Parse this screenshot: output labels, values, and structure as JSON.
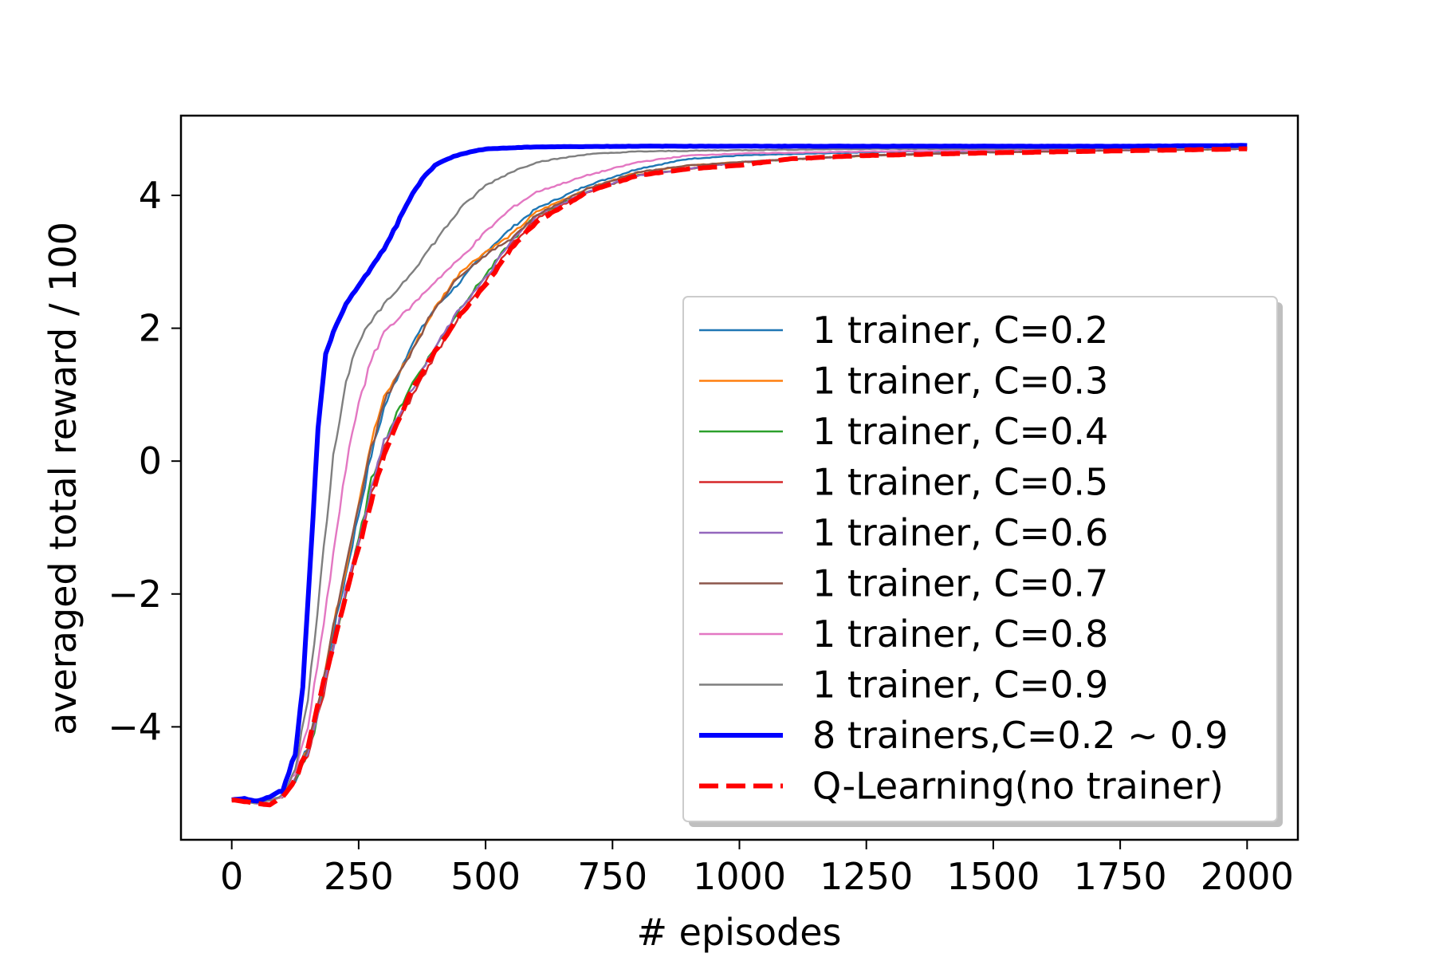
{
  "chart_data": {
    "type": "line",
    "title": "",
    "xlabel": "# episodes",
    "ylabel": "averaged total reward / 100",
    "xlim": [
      -100,
      2100
    ],
    "ylim": [
      -5.7,
      5.2
    ],
    "x_ticks": [
      0,
      250,
      500,
      750,
      1000,
      1250,
      1500,
      1750,
      2000
    ],
    "x_tick_labels": [
      "0",
      "250",
      "500",
      "750",
      "1000",
      "1250",
      "1500",
      "1750",
      "2000"
    ],
    "y_ticks": [
      -4,
      -2,
      0,
      2,
      4
    ],
    "y_tick_labels": [
      "−4",
      "−2",
      "0",
      "2",
      "4"
    ],
    "grid": false,
    "legend_position": "lower-right",
    "series": [
      {
        "name": "1 trainer, C=0.2",
        "color": "#1f77b4",
        "style": "solid",
        "width": "thin",
        "points": [
          [
            0,
            -5.1
          ],
          [
            50,
            -5.15
          ],
          [
            100,
            -5.05
          ],
          [
            125,
            -4.8
          ],
          [
            150,
            -4.3
          ],
          [
            175,
            -3.5
          ],
          [
            200,
            -2.6
          ],
          [
            225,
            -1.7
          ],
          [
            250,
            -0.8
          ],
          [
            275,
            0.1
          ],
          [
            300,
            0.8
          ],
          [
            350,
            1.7
          ],
          [
            400,
            2.3
          ],
          [
            450,
            2.7
          ],
          [
            500,
            3.15
          ],
          [
            550,
            3.5
          ],
          [
            600,
            3.8
          ],
          [
            700,
            4.15
          ],
          [
            800,
            4.4
          ],
          [
            900,
            4.55
          ],
          [
            1000,
            4.6
          ],
          [
            1250,
            4.65
          ],
          [
            1500,
            4.68
          ],
          [
            1750,
            4.7
          ],
          [
            2000,
            4.72
          ]
        ]
      },
      {
        "name": "1 trainer, C=0.3",
        "color": "#ff7f0e",
        "style": "solid",
        "width": "thin",
        "points": [
          [
            0,
            -5.1
          ],
          [
            50,
            -5.15
          ],
          [
            100,
            -5.05
          ],
          [
            125,
            -4.8
          ],
          [
            150,
            -4.3
          ],
          [
            175,
            -3.5
          ],
          [
            200,
            -2.5
          ],
          [
            225,
            -1.6
          ],
          [
            250,
            -0.6
          ],
          [
            275,
            0.3
          ],
          [
            300,
            0.95
          ],
          [
            350,
            1.6
          ],
          [
            400,
            2.3
          ],
          [
            450,
            2.85
          ],
          [
            500,
            3.15
          ],
          [
            550,
            3.4
          ],
          [
            600,
            3.75
          ],
          [
            700,
            4.1
          ],
          [
            800,
            4.35
          ],
          [
            900,
            4.45
          ],
          [
            1000,
            4.5
          ],
          [
            1250,
            4.6
          ],
          [
            1500,
            4.65
          ],
          [
            1750,
            4.68
          ],
          [
            2000,
            4.7
          ]
        ]
      },
      {
        "name": "1 trainer, C=0.4",
        "color": "#2ca02c",
        "style": "solid",
        "width": "thin",
        "points": [
          [
            0,
            -5.1
          ],
          [
            50,
            -5.15
          ],
          [
            100,
            -5.05
          ],
          [
            125,
            -4.8
          ],
          [
            150,
            -4.4
          ],
          [
            175,
            -3.7
          ],
          [
            200,
            -2.8
          ],
          [
            225,
            -2.0
          ],
          [
            250,
            -1.2
          ],
          [
            275,
            -0.3
          ],
          [
            300,
            0.3
          ],
          [
            350,
            1.1
          ],
          [
            400,
            1.7
          ],
          [
            450,
            2.3
          ],
          [
            500,
            2.8
          ],
          [
            550,
            3.3
          ],
          [
            600,
            3.7
          ],
          [
            700,
            4.05
          ],
          [
            800,
            4.3
          ],
          [
            900,
            4.4
          ],
          [
            1000,
            4.5
          ],
          [
            1250,
            4.6
          ],
          [
            1500,
            4.65
          ],
          [
            1750,
            4.68
          ],
          [
            2000,
            4.7
          ]
        ]
      },
      {
        "name": "1 trainer, C=0.5",
        "color": "#d62728",
        "style": "solid",
        "width": "thin",
        "points": [
          [
            0,
            -5.1
          ],
          [
            50,
            -5.15
          ],
          [
            100,
            -5.05
          ],
          [
            125,
            -4.8
          ],
          [
            150,
            -4.4
          ],
          [
            175,
            -3.7
          ],
          [
            200,
            -2.8
          ],
          [
            225,
            -2.0
          ],
          [
            250,
            -1.3
          ],
          [
            275,
            -0.5
          ],
          [
            300,
            0.2
          ],
          [
            350,
            0.9
          ],
          [
            400,
            1.6
          ],
          [
            450,
            2.2
          ],
          [
            500,
            2.7
          ],
          [
            550,
            3.25
          ],
          [
            600,
            3.65
          ],
          [
            700,
            4.05
          ],
          [
            800,
            4.3
          ],
          [
            900,
            4.4
          ],
          [
            1000,
            4.5
          ],
          [
            1250,
            4.6
          ],
          [
            1500,
            4.65
          ],
          [
            1750,
            4.68
          ],
          [
            2000,
            4.7
          ]
        ]
      },
      {
        "name": "1 trainer, C=0.6",
        "color": "#9467bd",
        "style": "solid",
        "width": "thin",
        "points": [
          [
            0,
            -5.1
          ],
          [
            50,
            -5.15
          ],
          [
            100,
            -5.05
          ],
          [
            125,
            -4.8
          ],
          [
            150,
            -4.4
          ],
          [
            175,
            -3.6
          ],
          [
            200,
            -2.8
          ],
          [
            225,
            -1.9
          ],
          [
            250,
            -1.2
          ],
          [
            275,
            -0.4
          ],
          [
            300,
            0.3
          ],
          [
            350,
            1.0
          ],
          [
            400,
            1.7
          ],
          [
            450,
            2.3
          ],
          [
            500,
            2.75
          ],
          [
            550,
            3.3
          ],
          [
            600,
            3.7
          ],
          [
            700,
            4.05
          ],
          [
            800,
            4.3
          ],
          [
            900,
            4.4
          ],
          [
            1000,
            4.5
          ],
          [
            1250,
            4.6
          ],
          [
            1500,
            4.65
          ],
          [
            1750,
            4.68
          ],
          [
            2000,
            4.7
          ]
        ]
      },
      {
        "name": "1 trainer, C=0.7",
        "color": "#8c564b",
        "style": "solid",
        "width": "thin",
        "points": [
          [
            0,
            -5.1
          ],
          [
            50,
            -5.15
          ],
          [
            100,
            -5.05
          ],
          [
            125,
            -4.8
          ],
          [
            150,
            -4.3
          ],
          [
            175,
            -3.5
          ],
          [
            200,
            -2.5
          ],
          [
            225,
            -1.6
          ],
          [
            250,
            -0.7
          ],
          [
            275,
            0.2
          ],
          [
            300,
            0.9
          ],
          [
            350,
            1.6
          ],
          [
            400,
            2.3
          ],
          [
            450,
            2.8
          ],
          [
            500,
            3.1
          ],
          [
            550,
            3.35
          ],
          [
            600,
            3.7
          ],
          [
            700,
            4.1
          ],
          [
            800,
            4.35
          ],
          [
            900,
            4.45
          ],
          [
            1000,
            4.5
          ],
          [
            1250,
            4.6
          ],
          [
            1500,
            4.65
          ],
          [
            1750,
            4.68
          ],
          [
            2000,
            4.7
          ]
        ]
      },
      {
        "name": "1 trainer, C=0.8",
        "color": "#e377c2",
        "style": "solid",
        "width": "thin",
        "points": [
          [
            0,
            -5.1
          ],
          [
            50,
            -5.15
          ],
          [
            100,
            -5.05
          ],
          [
            125,
            -4.7
          ],
          [
            150,
            -4.0
          ],
          [
            175,
            -2.8
          ],
          [
            200,
            -1.4
          ],
          [
            225,
            -0.1
          ],
          [
            250,
            0.9
          ],
          [
            275,
            1.5
          ],
          [
            300,
            1.95
          ],
          [
            350,
            2.3
          ],
          [
            400,
            2.7
          ],
          [
            450,
            3.05
          ],
          [
            500,
            3.45
          ],
          [
            550,
            3.8
          ],
          [
            600,
            4.05
          ],
          [
            700,
            4.3
          ],
          [
            800,
            4.5
          ],
          [
            900,
            4.6
          ],
          [
            1000,
            4.63
          ],
          [
            1250,
            4.66
          ],
          [
            1500,
            4.68
          ],
          [
            1750,
            4.7
          ],
          [
            2000,
            4.72
          ]
        ]
      },
      {
        "name": "1 trainer, C=0.9",
        "color": "#7f7f7f",
        "style": "solid",
        "width": "thin",
        "points": [
          [
            0,
            -5.1
          ],
          [
            50,
            -5.15
          ],
          [
            100,
            -5.05
          ],
          [
            125,
            -4.6
          ],
          [
            150,
            -3.6
          ],
          [
            175,
            -1.8
          ],
          [
            200,
            0.1
          ],
          [
            225,
            1.2
          ],
          [
            250,
            1.8
          ],
          [
            275,
            2.1
          ],
          [
            300,
            2.35
          ],
          [
            350,
            2.8
          ],
          [
            400,
            3.3
          ],
          [
            450,
            3.8
          ],
          [
            500,
            4.15
          ],
          [
            550,
            4.35
          ],
          [
            600,
            4.5
          ],
          [
            700,
            4.62
          ],
          [
            800,
            4.66
          ],
          [
            1000,
            4.68
          ],
          [
            1250,
            4.7
          ],
          [
            1500,
            4.7
          ],
          [
            1750,
            4.71
          ],
          [
            2000,
            4.72
          ]
        ]
      },
      {
        "name": "8 trainers,C=0.2 ~ 0.9",
        "color": "#0000ff",
        "style": "solid",
        "width": "thick",
        "points": [
          [
            0,
            -5.1
          ],
          [
            25,
            -5.08
          ],
          [
            50,
            -5.12
          ],
          [
            75,
            -5.05
          ],
          [
            100,
            -4.95
          ],
          [
            125,
            -4.4
          ],
          [
            140,
            -3.4
          ],
          [
            155,
            -1.5
          ],
          [
            170,
            0.5
          ],
          [
            185,
            1.6
          ],
          [
            200,
            1.95
          ],
          [
            225,
            2.35
          ],
          [
            250,
            2.65
          ],
          [
            275,
            2.9
          ],
          [
            300,
            3.2
          ],
          [
            325,
            3.55
          ],
          [
            350,
            3.95
          ],
          [
            375,
            4.25
          ],
          [
            400,
            4.45
          ],
          [
            425,
            4.55
          ],
          [
            450,
            4.62
          ],
          [
            500,
            4.7
          ],
          [
            600,
            4.73
          ],
          [
            800,
            4.74
          ],
          [
            1000,
            4.74
          ],
          [
            1250,
            4.74
          ],
          [
            1500,
            4.74
          ],
          [
            1750,
            4.74
          ],
          [
            2000,
            4.75
          ]
        ]
      },
      {
        "name": "Q-Learning(no trainer)",
        "color": "#ff0000",
        "style": "dashed",
        "width": "thick",
        "points": [
          [
            0,
            -5.1
          ],
          [
            50,
            -5.15
          ],
          [
            75,
            -5.18
          ],
          [
            100,
            -5.05
          ],
          [
            125,
            -4.8
          ],
          [
            150,
            -4.3
          ],
          [
            175,
            -3.5
          ],
          [
            200,
            -2.8
          ],
          [
            225,
            -2.0
          ],
          [
            250,
            -1.3
          ],
          [
            275,
            -0.6
          ],
          [
            300,
            0.1
          ],
          [
            350,
            1.0
          ],
          [
            400,
            1.65
          ],
          [
            450,
            2.2
          ],
          [
            500,
            2.65
          ],
          [
            550,
            3.2
          ],
          [
            600,
            3.6
          ],
          [
            700,
            4.05
          ],
          [
            800,
            4.3
          ],
          [
            900,
            4.4
          ],
          [
            1000,
            4.45
          ],
          [
            1100,
            4.55
          ],
          [
            1250,
            4.6
          ],
          [
            1500,
            4.64
          ],
          [
            1750,
            4.67
          ],
          [
            2000,
            4.7
          ]
        ]
      }
    ]
  }
}
